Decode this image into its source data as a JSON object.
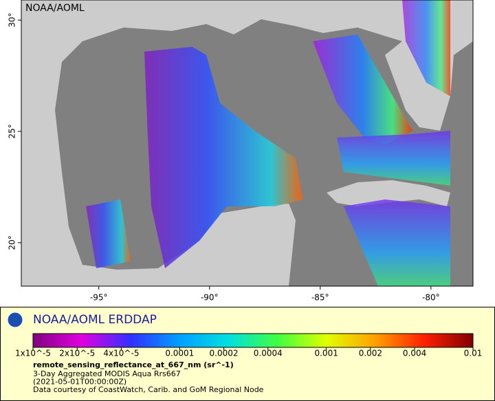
{
  "chart_data": {
    "type": "map",
    "map_label": "NOAA/AOML",
    "xlim": [
      -98.5,
      -78.1
    ],
    "ylim": [
      18.05,
      30.9
    ],
    "xticks": [
      {
        "value": -95,
        "label": "-95°"
      },
      {
        "value": -90,
        "label": "-90°"
      },
      {
        "value": -85,
        "label": "-85°"
      },
      {
        "value": -80,
        "label": "-80°"
      }
    ],
    "yticks": [
      {
        "value": 20,
        "label": "20°"
      },
      {
        "value": 25,
        "label": "25°"
      },
      {
        "value": 30,
        "label": "30°"
      }
    ],
    "legend": {
      "title": "NOAA/AOML ERDDAP",
      "variable": "remote_sensing_reflectance_at_667_nm (sr^-1)",
      "lines": [
        "3-Day Aggregated MODIS Aqua Rrs667",
        "(2021-05-01T00:00:00Z)",
        "Data courtesy of CoastWatch, Carib. and GoM Regional Node"
      ]
    },
    "colorbar": {
      "range": [
        1e-05,
        0.01
      ],
      "log_scale": true,
      "colormap": [
        "#80007f",
        "#e000e0",
        "#3030ff",
        "#00a0ff",
        "#00e0e0",
        "#40ff40",
        "#e0ff00",
        "#ffa000",
        "#ff2000",
        "#800000"
      ],
      "ticks": [
        {
          "value": 1e-05,
          "label": "1x10^-5"
        },
        {
          "value": 2e-05,
          "label": "2x10^-5"
        },
        {
          "value": 4e-05,
          "label": "4x10^-5"
        },
        0.0001,
        0.0002,
        0.0004,
        0.001,
        0.002,
        0.004,
        0.01
      ]
    }
  }
}
